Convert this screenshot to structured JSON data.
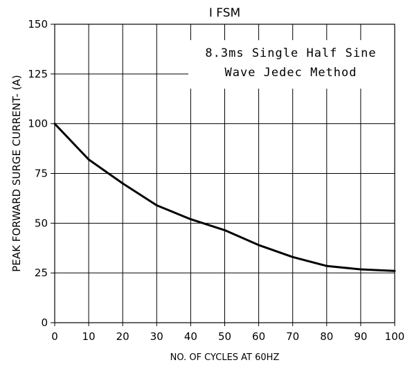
{
  "chart_data": {
    "type": "line",
    "title": "I FSM",
    "xlabel": "NO. OF CYCLES AT 60HZ",
    "ylabel": "PEAK FORWARD SURGE CURRENT- (A)",
    "xlim": [
      0,
      100
    ],
    "ylim": [
      0,
      150
    ],
    "x_ticks": [
      "0",
      "10",
      "20",
      "30",
      "40",
      "50",
      "60",
      "70",
      "80",
      "90",
      "100"
    ],
    "y_ticks": [
      "0",
      "25",
      "50",
      "75",
      "100",
      "125",
      "150"
    ],
    "grid": true,
    "annotation": [
      "8.3ms Single Half Sine",
      "Wave Jedec Method"
    ],
    "annotation_placement": "top-right",
    "series": [
      {
        "x": [
          0,
          10,
          20,
          30,
          40,
          50,
          60,
          70,
          80,
          90,
          100
        ],
        "y": [
          100,
          82,
          70,
          59,
          52,
          46.5,
          39,
          33,
          28.5,
          26.8,
          26
        ]
      }
    ]
  }
}
